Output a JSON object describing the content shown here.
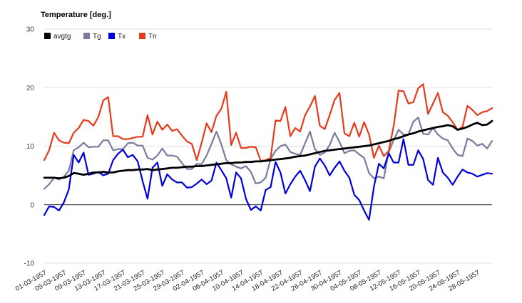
{
  "chart_data": {
    "type": "line",
    "title": "Temperature [deg.]",
    "ylim": [
      -10,
      30
    ],
    "yticks": [
      -10,
      0,
      10,
      20,
      30
    ],
    "x_tick_labels": [
      "01-03-1957",
      "05-03-1957",
      "09-03-1957",
      "13-03-1957",
      "17-03-1957",
      "21-03-1957",
      "25-03-1957",
      "29-03-1957",
      "02-04-1957",
      "06-04-1957",
      "10-04-1957",
      "14-04-1957",
      "18-04-1957",
      "22-04-1957",
      "26-04-1957",
      "30-04-1957",
      "04-05-1957",
      "08-05-1957",
      "12-05-1957",
      "16-05-1957",
      "20-05-1957",
      "24-05-1957",
      "28-05-1957"
    ],
    "days": 92,
    "legend_position": "top-left",
    "zero_line": true,
    "series": [
      {
        "name": "avgtg",
        "color": "#000000",
        "values": [
          4.6,
          4.6,
          4.6,
          4.5,
          4.6,
          4.9,
          5.4,
          5.3,
          5.1,
          5.3,
          5.5,
          5.5,
          5.6,
          5.5,
          5.5,
          5.7,
          5.8,
          5.9,
          5.9,
          6.0,
          6.0,
          6.1,
          5.9,
          6.0,
          6.1,
          6.2,
          6.3,
          6.3,
          6.4,
          6.5,
          6.5,
          6.6,
          6.6,
          6.7,
          6.8,
          6.9,
          7.0,
          7.1,
          7.1,
          7.2,
          7.2,
          7.3,
          7.3,
          7.4,
          7.4,
          7.5,
          7.6,
          7.7,
          7.8,
          7.9,
          8.0,
          8.2,
          8.3,
          8.4,
          8.6,
          8.8,
          9.0,
          9.2,
          9.3,
          9.4,
          9.5,
          9.6,
          9.7,
          9.8,
          9.9,
          10.0,
          10.1,
          10.3,
          10.5,
          10.7,
          10.9,
          11.2,
          11.4,
          11.7,
          12.0,
          12.2,
          12.5,
          12.7,
          12.9,
          13.1,
          13.3,
          13.4,
          13.6,
          13.4,
          12.8,
          13.0,
          13.3,
          13.7,
          14.0,
          13.6,
          13.7,
          14.3
        ]
      },
      {
        "name": "Tg",
        "color": "#7a7a9e",
        "values": [
          2.7,
          3.5,
          4.6,
          4.3,
          4.8,
          5.8,
          9.3,
          9.8,
          10.6,
          9.8,
          9.9,
          9.9,
          11.0,
          11.0,
          9.3,
          9.5,
          9.5,
          10.5,
          10.6,
          10.1,
          10.1,
          8.0,
          7.7,
          8.4,
          9.6,
          8.4,
          8.4,
          8.2,
          7.1,
          6.1,
          6.1,
          7.0,
          6.9,
          8.4,
          10.4,
          12.5,
          10.3,
          7.6,
          6.9,
          6.5,
          6.2,
          6.6,
          5.6,
          3.6,
          3.8,
          4.6,
          7.8,
          9.2,
          10.0,
          10.3,
          9.0,
          8.7,
          8.5,
          10.5,
          12.5,
          9.5,
          8.5,
          8.9,
          10.2,
          12.3,
          10.7,
          8.8,
          9.2,
          9.3,
          8.6,
          8.0,
          5.4,
          4.5,
          4.8,
          4.5,
          9.0,
          11.0,
          12.8,
          12.0,
          12.0,
          14.2,
          14.9,
          12.1,
          12.0,
          13.1,
          12.0,
          11.3,
          11.0,
          9.6,
          8.5,
          8.3,
          11.3,
          10.9,
          10.1,
          10.4,
          9.6,
          10.9
        ]
      },
      {
        "name": "Tx",
        "color": "#0000dd",
        "values": [
          -1.8,
          -0.3,
          -0.4,
          -1.0,
          0.4,
          2.6,
          8.5,
          7.2,
          8.9,
          5.1,
          5.3,
          5.6,
          5.0,
          5.3,
          7.6,
          8.7,
          9.4,
          8.1,
          8.5,
          7.4,
          4.0,
          1.0,
          6.3,
          7.2,
          3.2,
          5.2,
          4.3,
          3.8,
          3.8,
          2.9,
          3.0,
          3.6,
          4.3,
          3.5,
          4.1,
          7.2,
          5.9,
          4.5,
          1.2,
          5.5,
          4.5,
          1.0,
          -0.9,
          -0.3,
          -1.0,
          2.5,
          3.0,
          7.3,
          5.5,
          1.9,
          3.5,
          4.8,
          5.8,
          4.2,
          2.3,
          6.5,
          7.9,
          6.7,
          5.0,
          6.3,
          7.4,
          5.8,
          4.6,
          1.7,
          0.8,
          -1.0,
          -2.6,
          3.1,
          7.0,
          6.2,
          8.8,
          7.2,
          7.2,
          11.2,
          6.8,
          6.8,
          9.3,
          7.8,
          4.2,
          3.4,
          8.0,
          5.5,
          4.6,
          3.4,
          4.8,
          6.0,
          5.5,
          5.3,
          4.8,
          5.1,
          5.4,
          5.3
        ]
      },
      {
        "name": "Tn",
        "color": "#e63a1a",
        "values": [
          7.6,
          9.3,
          12.3,
          11.0,
          10.6,
          10.5,
          12.3,
          13.1,
          14.5,
          14.3,
          13.5,
          15.0,
          17.8,
          18.4,
          11.7,
          11.7,
          11.2,
          11.2,
          11.4,
          11.6,
          11.6,
          15.3,
          12.0,
          14.2,
          12.8,
          13.7,
          12.6,
          12.9,
          11.8,
          10.8,
          10.4,
          7.6,
          10.6,
          13.9,
          12.4,
          15.2,
          16.4,
          19.3,
          10.2,
          12.3,
          9.7,
          9.7,
          9.9,
          9.8,
          7.5,
          7.6,
          8.0,
          14.4,
          14.3,
          16.7,
          11.7,
          13.1,
          12.5,
          15.3,
          16.8,
          18.6,
          13.5,
          12.9,
          15.3,
          17.9,
          19.1,
          12.2,
          11.7,
          14.0,
          11.6,
          14.1,
          12.0,
          8.0,
          10.1,
          8.3,
          9.2,
          13.4,
          19.5,
          19.4,
          17.3,
          17.5,
          19.9,
          20.6,
          15.5,
          17.3,
          19.1,
          15.8,
          15.2,
          14.1,
          12.8,
          13.3,
          16.9,
          16.2,
          15.3,
          15.8,
          16.0,
          16.5
        ]
      }
    ]
  }
}
